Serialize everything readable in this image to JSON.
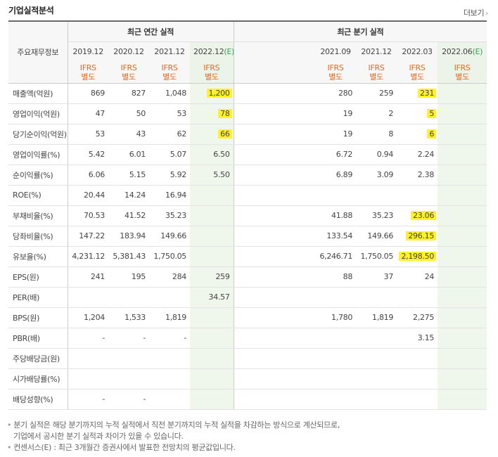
{
  "title": "기업실적분석",
  "more_label": "더보기",
  "header": {
    "corner_label": "주요재무정보",
    "annual_label": "최근 연간 실적",
    "quarter_label": "최근 분기 실적",
    "annual_periods": [
      "2019.12",
      "2020.12",
      "2021.12",
      "2022.12"
    ],
    "annual_est_suffix": "(E)",
    "quarter_periods": [
      "",
      "",
      "2021.09",
      "2021.12",
      "2022.03",
      "2022.06"
    ],
    "quarter_est_suffix": "(E)",
    "ifrs_line1": "IFRS",
    "ifrs_line2": "별도"
  },
  "rows": [
    {
      "label": "매출액(억원)",
      "annual": [
        "869",
        "827",
        "1,048",
        "1,200"
      ],
      "quarter": [
        "",
        "",
        "280",
        "259",
        "231",
        ""
      ]
    },
    {
      "label": "영업이익(억원)",
      "annual": [
        "47",
        "50",
        "53",
        "78"
      ],
      "quarter": [
        "",
        "",
        "19",
        "2",
        "5",
        ""
      ]
    },
    {
      "label": "당기순이익(억원)",
      "annual": [
        "53",
        "43",
        "62",
        "66"
      ],
      "quarter": [
        "",
        "",
        "19",
        "8",
        "6",
        ""
      ]
    },
    {
      "label": "영업이익률(%)",
      "annual": [
        "5.42",
        "6.01",
        "5.07",
        "6.50"
      ],
      "quarter": [
        "",
        "",
        "6.72",
        "0.94",
        "2.24",
        ""
      ]
    },
    {
      "label": "순이익률(%)",
      "annual": [
        "6.06",
        "5.15",
        "5.92",
        "5.50"
      ],
      "quarter": [
        "",
        "",
        "6.89",
        "3.09",
        "2.38",
        ""
      ]
    },
    {
      "label": "ROE(%)",
      "annual": [
        "20.44",
        "14.24",
        "16.94",
        ""
      ],
      "quarter": [
        "",
        "",
        "",
        "",
        "",
        ""
      ]
    },
    {
      "label": "부채비율(%)",
      "annual": [
        "70.53",
        "41.52",
        "35.23",
        ""
      ],
      "quarter": [
        "",
        "",
        "41.88",
        "35.23",
        "23.06",
        ""
      ]
    },
    {
      "label": "당좌비율(%)",
      "annual": [
        "147.22",
        "183.94",
        "149.66",
        ""
      ],
      "quarter": [
        "",
        "",
        "133.54",
        "149.66",
        "296.15",
        ""
      ]
    },
    {
      "label": "유보율(%)",
      "annual": [
        "4,231.12",
        "5,381.43",
        "1,750.05",
        ""
      ],
      "quarter": [
        "",
        "",
        "6,246.71",
        "1,750.05",
        "2,198.50",
        ""
      ]
    },
    {
      "label": "EPS(원)",
      "annual": [
        "241",
        "195",
        "284",
        "259"
      ],
      "quarter": [
        "",
        "",
        "88",
        "37",
        "24",
        ""
      ]
    },
    {
      "label": "PER(배)",
      "annual": [
        "",
        "",
        "",
        "34.57"
      ],
      "quarter": [
        "",
        "",
        "",
        "",
        "",
        ""
      ]
    },
    {
      "label": "BPS(원)",
      "annual": [
        "1,204",
        "1,533",
        "1,819",
        ""
      ],
      "quarter": [
        "",
        "",
        "1,780",
        "1,819",
        "2,275",
        ""
      ]
    },
    {
      "label": "PBR(배)",
      "annual": [
        "-",
        "-",
        "-",
        ""
      ],
      "quarter": [
        "",
        "",
        "",
        "",
        "3.15",
        ""
      ]
    },
    {
      "label": "주당배당금(원)",
      "annual": [
        "",
        "",
        "",
        ""
      ],
      "quarter": [
        "",
        "",
        "",
        "",
        "",
        ""
      ]
    },
    {
      "label": "시가배당률(%)",
      "annual": [
        "",
        "",
        "",
        ""
      ],
      "quarter": [
        "",
        "",
        "",
        "",
        "",
        ""
      ]
    },
    {
      "label": "배당성향(%)",
      "annual": [
        "-",
        "-",
        "",
        ""
      ],
      "quarter": [
        "",
        "",
        "",
        "",
        "",
        ""
      ]
    }
  ],
  "highlighted": [
    "r0a3",
    "r1a3",
    "r2a3",
    "r0q4",
    "r1q4",
    "r2q4",
    "r6q4",
    "r7q4",
    "r8q4"
  ],
  "highlight_color": "#fff22a",
  "notes": [
    "분기 실적은 해당 분기까지의 누적 실적에서 직전 분기까지의 누적 실적을 차감하는 방식으로 계산되므로,",
    "기업에서 공시한 분기 실적과 차이가 있을 수 있습니다.",
    "컨센서스(E) : 최근 3개월간 증권사에서 발표한 전망치의 평균값입니다."
  ],
  "colors": {
    "ifrs": "#e8671c",
    "estimate": "#37a05b",
    "estimate_bg": "#eff6ec"
  }
}
